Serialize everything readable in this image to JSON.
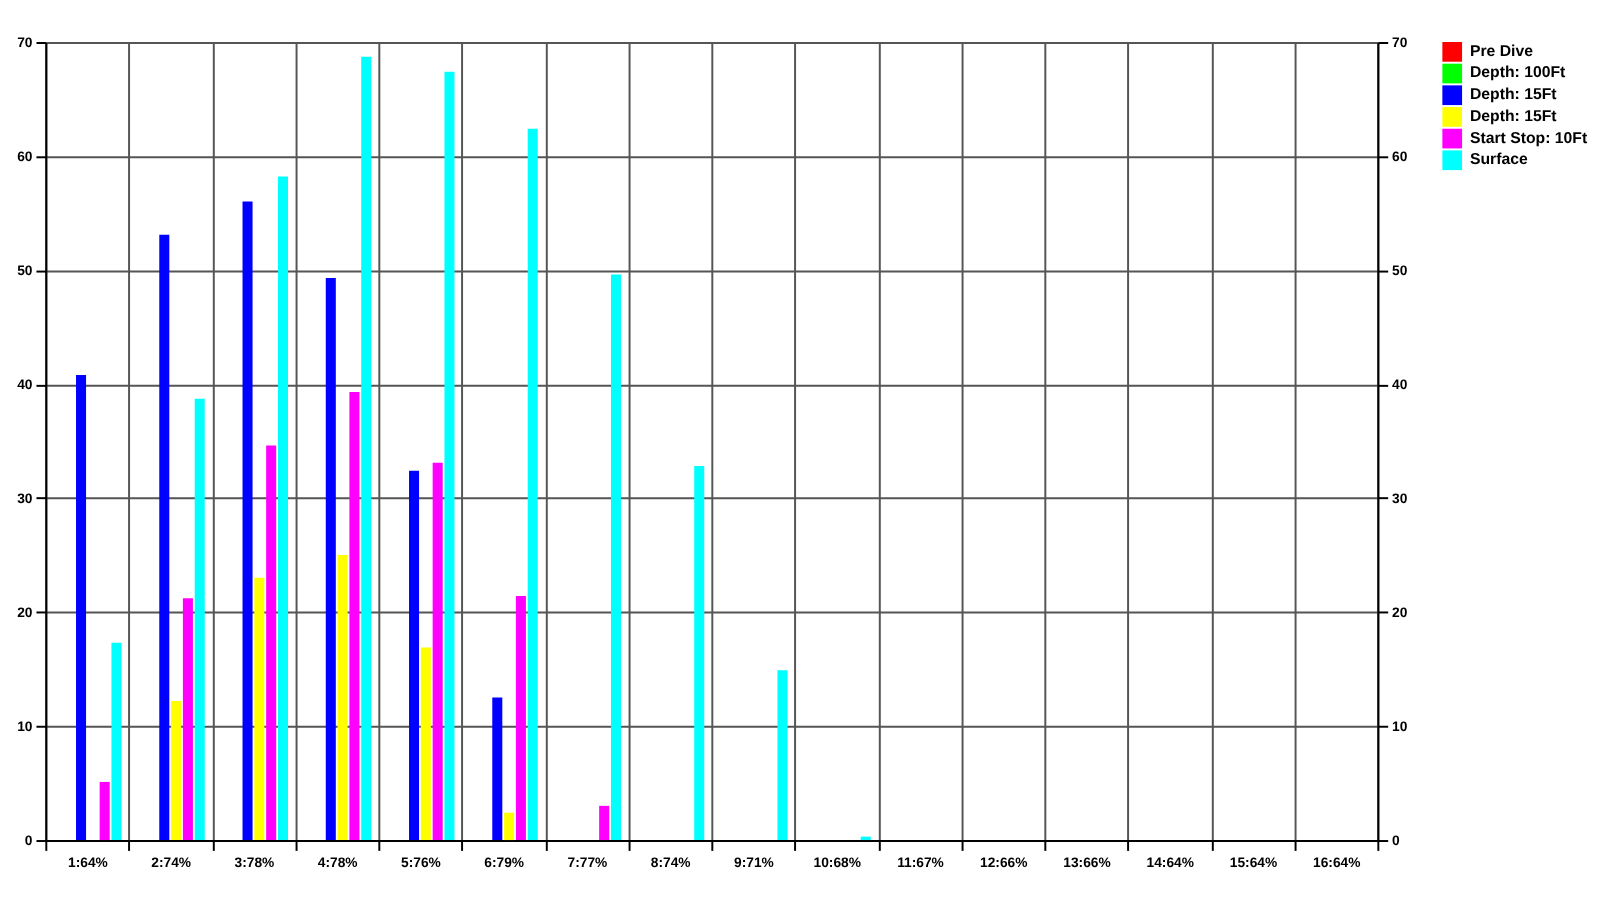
{
  "chart_data": {
    "type": "bar",
    "categories": [
      "1:64%",
      "2:74%",
      "3:78%",
      "4:78%",
      "5:76%",
      "6:79%",
      "7:77%",
      "8:74%",
      "9:71%",
      "10:68%",
      "11:67%",
      "12:66%",
      "13:66%",
      "14:64%",
      "15:64%",
      "16:64%"
    ],
    "series": [
      {
        "name": "Pre Dive",
        "color": "#ff0000",
        "values": [
          0,
          0,
          0,
          0,
          0,
          0,
          0,
          0,
          0,
          0,
          0,
          0,
          0,
          0,
          0,
          0
        ]
      },
      {
        "name": "Depth: 100Ft",
        "color": "#00ff00",
        "values": [
          0,
          0,
          0,
          0,
          0,
          0,
          0,
          0,
          0,
          0,
          0,
          0,
          0,
          0,
          0,
          0
        ]
      },
      {
        "name": "Depth: 15Ft",
        "color": "#0000ff",
        "values": [
          40.8,
          53.1,
          56,
          49.3,
          32.4,
          12.5,
          0,
          0,
          0,
          0,
          0,
          0,
          0,
          0,
          0,
          0
        ]
      },
      {
        "name": "Depth: 15Ft",
        "color": "#ffff00",
        "values": [
          0,
          12.2,
          23,
          25,
          16.9,
          2.4,
          0,
          0,
          0,
          0,
          0,
          0,
          0,
          0,
          0,
          0
        ]
      },
      {
        "name": "Start Stop: 10Ft",
        "color": "#ff00ff",
        "values": [
          5.1,
          21.2,
          34.6,
          39.3,
          33.1,
          21.4,
          3.0,
          0,
          0,
          0,
          0,
          0,
          0,
          0,
          0,
          0
        ]
      },
      {
        "name": "Surface",
        "color": "#00ffff",
        "values": [
          17.3,
          38.7,
          58.2,
          68.7,
          67.4,
          62.4,
          49.6,
          32.8,
          14.9,
          0.3,
          0,
          0,
          0,
          0,
          0,
          0
        ]
      }
    ],
    "ylim": [
      0,
      70
    ],
    "yticks": [
      0,
      10,
      20,
      30,
      40,
      50,
      60,
      70
    ],
    "y2lim": [
      0,
      70
    ],
    "y2ticks": [
      0,
      10,
      20,
      30,
      40,
      50,
      60,
      70
    ],
    "grid": true,
    "legend": "right"
  }
}
